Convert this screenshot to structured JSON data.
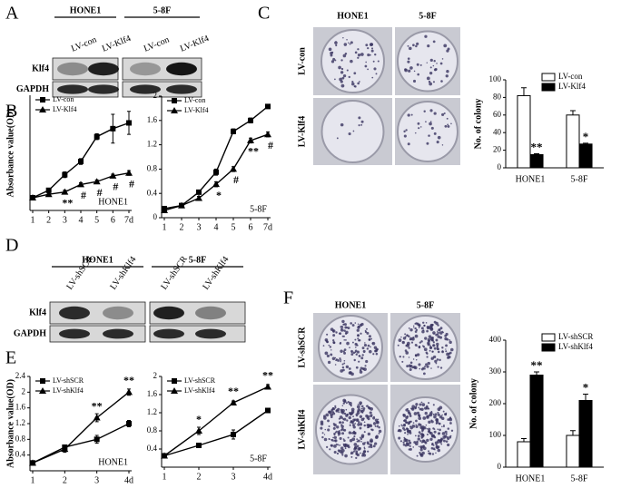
{
  "panel_labels": [
    "A",
    "B",
    "C",
    "D",
    "E",
    "F"
  ],
  "blots": [
    {
      "groups": [
        "HONE1",
        "5-8F"
      ],
      "lanes": [
        "LV-con",
        "LV-Klf4",
        "LV-con",
        "LV-Klf4"
      ],
      "rows": [
        "Klf4",
        "GAPDH"
      ]
    },
    {
      "groups": [
        "HONE1",
        "5-8F"
      ],
      "lanes": [
        "LV-shSCR",
        "LV-shKlf4",
        "LV-shSCR",
        "LV-shKlf4"
      ],
      "rows": [
        "Klf4",
        "GAPDH"
      ]
    }
  ],
  "plates": [
    {
      "columns": [
        "HONE1",
        "5-8F"
      ],
      "rows": [
        "LV-con",
        "LV-Klf4"
      ]
    },
    {
      "columns": [
        "HONE1",
        "5-8F"
      ],
      "rows": [
        "LV-shSCR",
        "LV-shKlf4"
      ]
    }
  ],
  "chart_data": [
    {
      "type": "line",
      "ylabel": "Absorbance value(OD)",
      "annotation": "HONE1",
      "x": [
        1,
        2,
        3,
        4,
        5,
        6,
        7
      ],
      "xlim": [
        1,
        7
      ],
      "xticks": [
        1,
        2,
        3,
        4,
        5,
        6,
        {
          "value": 7,
          "label": "7d"
        }
      ],
      "ylim": [
        0,
        2
      ],
      "legend": "upper left",
      "series": [
        {
          "name": "LV-con",
          "color": "#000000",
          "marker": "square",
          "values": [
            0.22,
            0.35,
            0.62,
            0.85,
            1.28,
            1.42,
            1.52
          ],
          "errors": [
            0.02,
            0.03,
            0.05,
            0.05,
            0.05,
            0.25,
            0.2
          ]
        },
        {
          "name": "LV-Klf4",
          "color": "#000000",
          "marker": "triangle",
          "values": [
            0.22,
            0.28,
            0.32,
            0.45,
            0.5,
            0.6,
            0.65
          ],
          "errors": [
            0.02,
            0.02,
            0.03,
            0.03,
            0.03,
            0.03,
            0.04
          ],
          "significance": [
            null,
            null,
            "**",
            "#",
            "#",
            "#",
            "#"
          ]
        }
      ]
    },
    {
      "type": "line",
      "annotation": "5-8F",
      "x": [
        1,
        2,
        3,
        4,
        5,
        6,
        7
      ],
      "xlim": [
        1,
        7
      ],
      "xticks": [
        1,
        2,
        3,
        4,
        5,
        6,
        {
          "value": 7,
          "label": "7d"
        }
      ],
      "ylim": [
        0,
        2
      ],
      "yticks": [
        0,
        0.4,
        0.8,
        1.2,
        1.6,
        2
      ],
      "legend": "upper left",
      "series": [
        {
          "name": "LV-con",
          "color": "#000000",
          "marker": "square",
          "values": [
            0.15,
            0.2,
            0.42,
            0.75,
            1.42,
            1.6,
            1.83
          ],
          "errors": [
            0.02,
            0.02,
            0.03,
            0.05,
            0.04,
            0.04,
            0.03
          ]
        },
        {
          "name": "LV-Klf4",
          "color": "#000000",
          "marker": "triangle",
          "values": [
            0.12,
            0.2,
            0.32,
            0.55,
            0.8,
            1.27,
            1.37
          ],
          "errors": [
            0.02,
            0.02,
            0.03,
            0.04,
            0.04,
            0.04,
            0.04
          ],
          "significance": [
            null,
            null,
            null,
            "*",
            "#",
            "**",
            "#"
          ]
        }
      ]
    },
    {
      "type": "bar",
      "ylabel": "No. of colony",
      "categories": [
        "HONE1",
        "5-8F"
      ],
      "ylim": [
        0,
        100
      ],
      "yticks": [
        0,
        20,
        40,
        60,
        80,
        100
      ],
      "legend": "upper right",
      "series": [
        {
          "name": "LV-con",
          "color": "#ffffff",
          "values": [
            82,
            60
          ],
          "errors": [
            9,
            5
          ]
        },
        {
          "name": "LV-Klf4",
          "color": "#000000",
          "values": [
            15,
            27
          ],
          "errors": [
            1,
            1
          ],
          "significance": [
            "**",
            "*"
          ]
        }
      ]
    },
    {
      "type": "line",
      "ylabel": "Absorbance value(OD)",
      "annotation": "HONE1",
      "x": [
        1,
        2,
        3,
        4
      ],
      "xlim": [
        1,
        4
      ],
      "xticks": [
        1,
        2,
        3,
        {
          "value": 4,
          "label": "4d"
        }
      ],
      "ylim": [
        0,
        2.4
      ],
      "yticks": [
        0.4,
        0.8,
        1.2,
        1.6,
        2,
        2.4
      ],
      "legend": "upper left",
      "series": [
        {
          "name": "LV-shSCR",
          "color": "#000000",
          "marker": "square",
          "values": [
            0.2,
            0.6,
            0.8,
            1.2
          ],
          "errors": [
            0.02,
            0.05,
            0.1,
            0.08
          ]
        },
        {
          "name": "LV-shKlf4",
          "color": "#000000",
          "marker": "triangle",
          "values": [
            0.2,
            0.55,
            1.35,
            2.0
          ],
          "errors": [
            0.02,
            0.08,
            0.1,
            0.08
          ],
          "significance": [
            null,
            null,
            "**",
            "**"
          ]
        }
      ]
    },
    {
      "type": "line",
      "annotation": "5-8F",
      "x": [
        1,
        2,
        3,
        4
      ],
      "xlim": [
        1,
        4
      ],
      "xticks": [
        1,
        2,
        3,
        {
          "value": 4,
          "label": "4d"
        }
      ],
      "ylim": [
        0,
        2
      ],
      "yticks": [
        0.4,
        0.8,
        1.2,
        1.6,
        2
      ],
      "legend": "upper left",
      "series": [
        {
          "name": "LV-shSCR",
          "color": "#000000",
          "marker": "square",
          "values": [
            0.25,
            0.48,
            0.72,
            1.25
          ],
          "errors": [
            0.02,
            0.04,
            0.1,
            0.04
          ]
        },
        {
          "name": "LV-shKlf4",
          "color": "#000000",
          "marker": "triangle",
          "values": [
            0.25,
            0.8,
            1.42,
            1.77
          ],
          "errors": [
            0.02,
            0.08,
            0.04,
            0.05
          ],
          "significance": [
            null,
            "*",
            "**",
            "**"
          ]
        }
      ]
    },
    {
      "type": "bar",
      "ylabel": "No. of colony",
      "categories": [
        "HONE1",
        "5-8F"
      ],
      "ylim": [
        0,
        400
      ],
      "yticks": [
        0,
        100,
        200,
        300,
        400
      ],
      "legend": "upper right",
      "series": [
        {
          "name": "LV-shSCR",
          "color": "#ffffff",
          "values": [
            80,
            100
          ],
          "errors": [
            10,
            15
          ]
        },
        {
          "name": "LV-shKlf4",
          "color": "#000000",
          "values": [
            290,
            210
          ],
          "errors": [
            10,
            20
          ],
          "significance": [
            "**",
            "*"
          ]
        }
      ]
    }
  ]
}
